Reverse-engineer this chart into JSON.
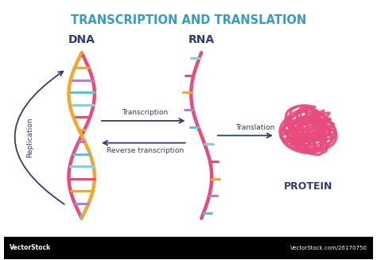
{
  "title": "TRANSCRIPTION AND TRANSLATION",
  "title_color": "#3a9abf",
  "title_fontsize": 10.5,
  "dna_label": "DNA",
  "rna_label": "RNA",
  "protein_label": "PROTEIN",
  "label_color": "#2d3f6e",
  "label_fontsize": 9,
  "replication_label": "Replication",
  "transcription_label": "Transcription",
  "reverse_transcription_label": "Reverse transcription",
  "translation_label": "Translation",
  "arrow_color": "#2d3f6e",
  "dna_strand1_color": "#f0a830",
  "dna_strand2_color": "#e84c7d",
  "rna_strand_color": "#e84c7d",
  "protein_color": "#e84c7d",
  "bar_colors": [
    "#4ec8e0",
    "#b87fc7",
    "#f0a830",
    "#e84c7d",
    "#7fd4e0"
  ],
  "background_color": "#ffffff",
  "watermark_bg": "#000000"
}
